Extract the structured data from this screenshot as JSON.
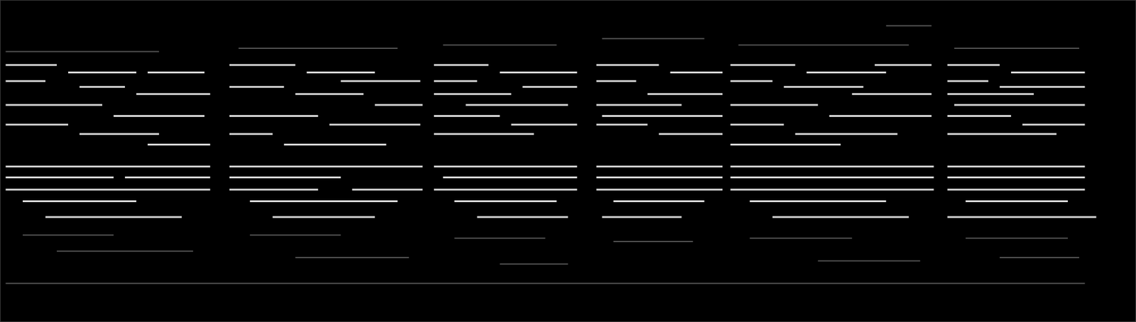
{
  "chart_data": {
    "type": "spectrogram",
    "xlim": [
      0,
      100
    ],
    "ylim": [
      0,
      100
    ],
    "tick_labels": false,
    "grid": false,
    "series": [
      {
        "color": "#f2f2f2",
        "segments": [
          [
            0.5,
            5,
            79.8
          ],
          [
            6,
            12,
            77.5
          ],
          [
            13,
            18,
            77.5
          ],
          [
            0.5,
            4,
            74.8
          ],
          [
            7,
            11,
            73
          ],
          [
            12,
            18.5,
            70.8
          ],
          [
            0.5,
            9,
            67.4
          ],
          [
            10,
            18,
            64
          ],
          [
            0.5,
            6,
            61.3
          ],
          [
            7,
            14,
            58.4
          ],
          [
            13,
            18.5,
            55.1
          ],
          [
            0.5,
            18.5,
            48.3
          ],
          [
            0.5,
            10,
            44.9
          ],
          [
            11,
            18.5,
            44.9
          ],
          [
            0.5,
            18.5,
            41.1
          ],
          [
            2,
            12,
            37.5
          ],
          [
            4,
            16,
            32.6
          ],
          [
            20.2,
            26,
            79.8
          ],
          [
            27,
            33,
            77.5
          ],
          [
            30,
            37,
            74.8
          ],
          [
            20.2,
            25,
            73
          ],
          [
            26,
            32,
            70.8
          ],
          [
            33,
            37.2,
            67.4
          ],
          [
            20.2,
            28,
            64
          ],
          [
            29,
            37,
            61.3
          ],
          [
            20.2,
            24,
            58.4
          ],
          [
            25,
            34,
            55.1
          ],
          [
            20.2,
            37.2,
            48.3
          ],
          [
            20.2,
            30,
            44.9
          ],
          [
            31,
            37.2,
            41.1
          ],
          [
            20.2,
            28,
            41.1
          ],
          [
            22,
            35,
            37.5
          ],
          [
            24,
            33,
            32.6
          ],
          [
            38.2,
            43,
            79.8
          ],
          [
            44,
            50.8,
            77.5
          ],
          [
            38.2,
            42,
            74.8
          ],
          [
            46,
            50.8,
            73
          ],
          [
            38.2,
            45,
            70.8
          ],
          [
            41,
            50,
            67.4
          ],
          [
            38.2,
            44,
            64
          ],
          [
            45,
            50.8,
            61.3
          ],
          [
            38.2,
            47,
            58.4
          ],
          [
            38.2,
            50.8,
            48.3
          ],
          [
            39,
            50.8,
            44.9
          ],
          [
            38.2,
            50.8,
            41.1
          ],
          [
            40,
            49,
            37.5
          ],
          [
            42,
            50,
            32.6
          ],
          [
            52.5,
            58,
            79.8
          ],
          [
            59,
            63.6,
            77.5
          ],
          [
            52.5,
            56,
            74.8
          ],
          [
            57,
            63.6,
            70.8
          ],
          [
            52.5,
            60,
            67.4
          ],
          [
            53,
            63.6,
            64
          ],
          [
            52.5,
            57,
            61.3
          ],
          [
            58,
            63.6,
            58.4
          ],
          [
            52.5,
            63.6,
            48.3
          ],
          [
            52.5,
            63.6,
            44.9
          ],
          [
            52.5,
            63.6,
            41.1
          ],
          [
            54,
            62,
            37.5
          ],
          [
            53,
            60,
            32.6
          ],
          [
            64.3,
            70,
            79.8
          ],
          [
            71,
            78,
            77.5
          ],
          [
            77,
            82,
            79.8
          ],
          [
            64.3,
            68,
            74.8
          ],
          [
            69,
            76,
            73
          ],
          [
            75,
            82,
            70.8
          ],
          [
            64.3,
            72,
            67.4
          ],
          [
            73,
            82,
            64
          ],
          [
            64.3,
            69,
            61.3
          ],
          [
            70,
            79,
            58.4
          ],
          [
            64.3,
            74,
            55.1
          ],
          [
            64.3,
            82.2,
            48.3
          ],
          [
            64.3,
            82.2,
            44.9
          ],
          [
            64.3,
            82.2,
            41.1
          ],
          [
            66,
            78,
            37.5
          ],
          [
            68,
            80,
            32.6
          ],
          [
            83.4,
            88,
            79.8
          ],
          [
            89,
            95.5,
            77.5
          ],
          [
            83.4,
            87,
            74.8
          ],
          [
            88,
            95.5,
            73
          ],
          [
            83.4,
            91,
            70.8
          ],
          [
            84,
            95.5,
            67.4
          ],
          [
            83.4,
            89,
            64
          ],
          [
            90,
            95.5,
            61.3
          ],
          [
            83.4,
            93,
            58.4
          ],
          [
            83.4,
            95.5,
            48.3
          ],
          [
            83.4,
            95.5,
            44.9
          ],
          [
            83.4,
            95.5,
            41.1
          ],
          [
            85,
            94,
            37.5
          ],
          [
            83.4,
            96.5,
            32.6
          ]
        ]
      },
      {
        "color": "#8a8a8a",
        "segments": [
          [
            0.5,
            14,
            84
          ],
          [
            2,
            10,
            27
          ],
          [
            5,
            17,
            22
          ],
          [
            21,
            35,
            85
          ],
          [
            22,
            30,
            27
          ],
          [
            26,
            36,
            20
          ],
          [
            39,
            49,
            86
          ],
          [
            40,
            48,
            26
          ],
          [
            44,
            50,
            18
          ],
          [
            53,
            62,
            88
          ],
          [
            54,
            61,
            25
          ],
          [
            65,
            80,
            86
          ],
          [
            66,
            75,
            26
          ],
          [
            72,
            81,
            19
          ],
          [
            78,
            82,
            92
          ],
          [
            84,
            95,
            85
          ],
          [
            85,
            94,
            26
          ],
          [
            88,
            95,
            20
          ],
          [
            0.5,
            95.5,
            12
          ]
        ]
      }
    ]
  }
}
